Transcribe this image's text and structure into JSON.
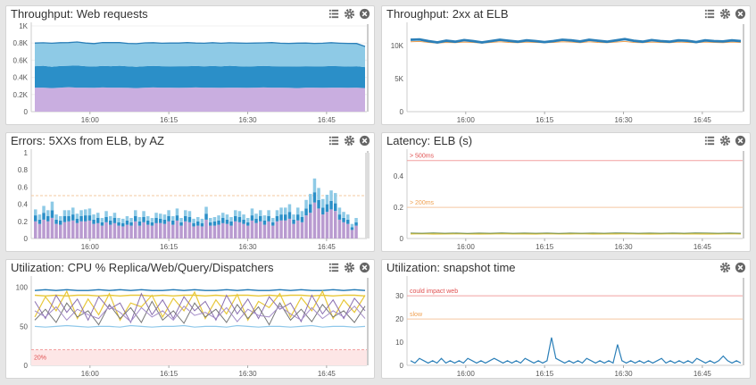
{
  "colors": {
    "lightblue": "#8ecae6",
    "blue": "#2b8fc8",
    "purple": "#b99bd0",
    "lightpurple": "#c9aee0",
    "yellow": "#e8c83a",
    "gray": "#777777",
    "red": "#e05050",
    "orange": "#f0a050",
    "darkblue": "#1f77b4",
    "skyline": "#8fc8ea",
    "marker": "#999999"
  },
  "panels": [
    {
      "title": "Throughput: Web requests",
      "icons": [
        "list-icon",
        "gear-icon",
        "close-icon"
      ]
    },
    {
      "title": "Throughput: 2xx at ELB",
      "icons": [
        "list-icon",
        "gear-icon",
        "close-icon"
      ]
    },
    {
      "title": "Errors: 5XXs from ELB, by AZ",
      "icons": [
        "list-icon",
        "gear-icon",
        "close-icon"
      ]
    },
    {
      "title": "Latency: ELB (s)",
      "icons": [
        "list-icon",
        "gear-icon",
        "close-icon"
      ]
    },
    {
      "title": "Utilization: CPU % Replica/Web/Query/Dispatchers",
      "icons": [
        "list-icon",
        "gear-icon",
        "close-icon"
      ]
    },
    {
      "title": "Utilization: snapshot time",
      "icons": [
        "gear-icon",
        "close-icon"
      ]
    }
  ],
  "chart_data": [
    {
      "type": "area",
      "title": "Throughput: Web requests",
      "x_ticks": [
        "16:00",
        "16:15",
        "16:30",
        "16:45"
      ],
      "y_ticks": [
        "0",
        "0.2K",
        "0.4K",
        "0.6K",
        "0.8K",
        "1K"
      ],
      "ylim": [
        0,
        1000
      ],
      "series": [
        {
          "values": [
            280,
            280,
            275,
            280,
            285,
            280,
            280,
            278,
            282,
            280,
            280,
            278,
            275,
            280,
            282,
            280,
            280,
            278,
            280,
            282,
            280,
            280,
            278,
            280,
            280,
            278,
            280,
            282,
            280,
            280,
            278,
            275,
            280,
            280,
            278,
            280,
            280,
            278,
            280,
            275
          ]
        },
        {
          "values": [
            250,
            255,
            248,
            252,
            250,
            258,
            250,
            248,
            252,
            250,
            255,
            250,
            248,
            250,
            252,
            250,
            248,
            252,
            250,
            250,
            248,
            252,
            250,
            255,
            250,
            248,
            250,
            252,
            250,
            248,
            250,
            252,
            250,
            248,
            250,
            252,
            250,
            248,
            250,
            245
          ]
        },
        {
          "values": [
            270,
            268,
            275,
            272,
            270,
            275,
            270,
            268,
            272,
            275,
            270,
            268,
            270,
            272,
            270,
            268,
            272,
            270,
            275,
            268,
            270,
            272,
            270,
            268,
            270,
            272,
            270,
            268,
            275,
            270,
            268,
            272,
            270,
            268,
            270,
            272,
            268,
            270,
            265,
            240
          ]
        }
      ]
    },
    {
      "type": "line",
      "title": "Throughput: 2xx at ELB",
      "x_ticks": [
        "16:00",
        "16:15",
        "16:30",
        "16:45"
      ],
      "y_ticks": [
        "0",
        "5K",
        "10K"
      ],
      "ylim": [
        0,
        13000
      ],
      "series": [
        {
          "values": [
            10900,
            10950,
            10700,
            10500,
            10750,
            10600,
            10850,
            10700,
            10500,
            10700,
            10900,
            10750,
            10600,
            10800,
            10700,
            10550,
            10700,
            10900,
            10800,
            10650,
            10900,
            10750,
            10600,
            10800,
            11000,
            10750,
            10600,
            10850,
            10700,
            10600,
            10800,
            10750,
            10550,
            10800,
            10700,
            10650,
            10800,
            10700
          ]
        },
        {
          "values": [
            10600,
            10650,
            10500,
            10400,
            10500,
            10450,
            10550,
            10500,
            10400,
            10500,
            10600,
            10500,
            10450,
            10550,
            10500,
            10450,
            10500,
            10600,
            10550,
            10450,
            10600,
            10500,
            10450,
            10550,
            10650,
            10500,
            10450,
            10550,
            10500,
            10450,
            10550,
            10500,
            10450,
            10550,
            10500,
            10450,
            10550,
            10500
          ]
        }
      ]
    },
    {
      "type": "bar",
      "title": "Errors: 5XXs from ELB, by AZ",
      "x_ticks": [
        "16:00",
        "16:15",
        "16:30",
        "16:45"
      ],
      "y_ticks": [
        "0",
        "0.2",
        "0.4",
        "0.6",
        "0.8",
        "1"
      ],
      "ylim": [
        0,
        1
      ],
      "series": [
        {
          "values": [
            0.2,
            0.17,
            0.22,
            0.2,
            0.24,
            0.17,
            0.16,
            0.19,
            0.2,
            0.21,
            0.18,
            0.2,
            0.2,
            0.21,
            0.17,
            0.18,
            0.15,
            0.19,
            0.16,
            0.18,
            0.15,
            0.14,
            0.16,
            0.15,
            0.2,
            0.15,
            0.19,
            0.16,
            0.15,
            0.18,
            0.18,
            0.17,
            0.2,
            0.16,
            0.21,
            0.15,
            0.2,
            0.19,
            0.14,
            0.15,
            0.14,
            0.22,
            0.15,
            0.15,
            0.16,
            0.18,
            0.17,
            0.15,
            0.2,
            0.19,
            0.17,
            0.15,
            0.21,
            0.18,
            0.2,
            0.16,
            0.2,
            0.15,
            0.2,
            0.21,
            0.21,
            0.23,
            0.17,
            0.21,
            0.19,
            0.27,
            0.3,
            0.42,
            0.35,
            0.28,
            0.31,
            0.34,
            0.32,
            0.22,
            0.19,
            0.17,
            0.1,
            0.15
          ]
        },
        {
          "values": [
            0.07,
            0.05,
            0.08,
            0.06,
            0.09,
            0.05,
            0.05,
            0.07,
            0.06,
            0.07,
            0.05,
            0.06,
            0.07,
            0.06,
            0.05,
            0.06,
            0.04,
            0.06,
            0.05,
            0.06,
            0.04,
            0.04,
            0.05,
            0.04,
            0.06,
            0.05,
            0.06,
            0.05,
            0.04,
            0.06,
            0.05,
            0.05,
            0.06,
            0.05,
            0.06,
            0.04,
            0.06,
            0.06,
            0.04,
            0.05,
            0.04,
            0.07,
            0.04,
            0.05,
            0.05,
            0.06,
            0.05,
            0.05,
            0.06,
            0.06,
            0.05,
            0.04,
            0.06,
            0.05,
            0.06,
            0.05,
            0.06,
            0.04,
            0.06,
            0.07,
            0.07,
            0.08,
            0.05,
            0.07,
            0.06,
            0.08,
            0.1,
            0.12,
            0.1,
            0.08,
            0.09,
            0.1,
            0.09,
            0.06,
            0.05,
            0.05,
            0.03,
            0.04
          ]
        },
        {
          "values": [
            0.07,
            0.06,
            0.08,
            0.07,
            0.1,
            0.06,
            0.05,
            0.07,
            0.07,
            0.08,
            0.06,
            0.07,
            0.07,
            0.08,
            0.06,
            0.06,
            0.05,
            0.07,
            0.05,
            0.06,
            0.05,
            0.05,
            0.05,
            0.05,
            0.07,
            0.05,
            0.07,
            0.05,
            0.05,
            0.06,
            0.06,
            0.06,
            0.07,
            0.05,
            0.08,
            0.05,
            0.07,
            0.07,
            0.05,
            0.05,
            0.05,
            0.08,
            0.05,
            0.05,
            0.06,
            0.06,
            0.06,
            0.05,
            0.07,
            0.07,
            0.06,
            0.05,
            0.08,
            0.06,
            0.07,
            0.06,
            0.07,
            0.05,
            0.07,
            0.08,
            0.08,
            0.09,
            0.06,
            0.08,
            0.07,
            0.1,
            0.12,
            0.16,
            0.14,
            0.1,
            0.11,
            0.12,
            0.12,
            0.08,
            0.07,
            0.06,
            0.04,
            0.05
          ]
        }
      ]
    },
    {
      "type": "line",
      "title": "Latency: ELB (s)",
      "x_ticks": [
        "16:00",
        "16:15",
        "16:30",
        "16:45"
      ],
      "y_ticks": [
        "0",
        "0.2",
        "0.4"
      ],
      "ylim": [
        0,
        0.55
      ],
      "annotations": [
        "> 500ms",
        "> 200ms"
      ],
      "series": [
        {
          "values": [
            0.035,
            0.034,
            0.036,
            0.034,
            0.035,
            0.033,
            0.035,
            0.034,
            0.036,
            0.034,
            0.035,
            0.034,
            0.035,
            0.033,
            0.035,
            0.034,
            0.035,
            0.034,
            0.036,
            0.035,
            0.034,
            0.035,
            0.034,
            0.035,
            0.034,
            0.036,
            0.035,
            0.034,
            0.035,
            0.034
          ]
        },
        {
          "values": [
            0.03,
            0.031,
            0.029,
            0.03,
            0.031,
            0.03,
            0.029,
            0.03,
            0.031,
            0.03,
            0.03,
            0.029,
            0.031,
            0.03,
            0.03,
            0.031,
            0.029,
            0.03,
            0.03,
            0.031,
            0.03,
            0.029,
            0.03,
            0.031,
            0.03,
            0.03,
            0.029,
            0.03,
            0.031,
            0.03
          ]
        }
      ]
    },
    {
      "type": "line",
      "title": "Utilization: CPU % Replica/Web/Query/Dispatchers",
      "x_ticks": [
        "16:00",
        "16:15",
        "16:30",
        "16:45"
      ],
      "y_ticks": [
        "0",
        "50",
        "100"
      ],
      "ylim": [
        0,
        110
      ],
      "annotations": [
        "20%"
      ],
      "series": [
        {
          "values": [
            96,
            97,
            96,
            97,
            96,
            96,
            97,
            96,
            97,
            96,
            97,
            96,
            96,
            97,
            96,
            97,
            96,
            96,
            97,
            96,
            97,
            96,
            96,
            97,
            96,
            97,
            96,
            96,
            97,
            96,
            97,
            96
          ]
        },
        {
          "values": [
            90,
            89,
            90,
            89,
            90,
            90,
            89,
            90,
            89,
            90,
            90,
            89,
            90,
            89,
            90,
            90,
            89,
            90,
            89,
            90,
            90,
            89,
            90,
            89,
            90,
            90,
            89,
            90,
            89,
            90,
            90,
            89
          ]
        },
        {
          "values": [
            62,
            88,
            70,
            95,
            60,
            85,
            65,
            92,
            58,
            80,
            75,
            90,
            62,
            86,
            70,
            94,
            60,
            84,
            66,
            91,
            58,
            82,
            74,
            92,
            62,
            87,
            70,
            95,
            60,
            84,
            68,
            90
          ]
        },
        {
          "values": [
            82,
            60,
            90,
            68,
            85,
            58,
            88,
            72,
            80,
            55,
            92,
            65,
            84,
            60,
            88,
            70,
            82,
            58,
            90,
            66,
            85,
            60,
            88,
            72,
            80,
            56,
            90,
            66,
            84,
            60,
            86,
            70
          ]
        },
        {
          "values": [
            58,
            72,
            55,
            80,
            62,
            70,
            52,
            78,
            60,
            74,
            55,
            82,
            58,
            70,
            54,
            80,
            62,
            72,
            55,
            78,
            60,
            75,
            52,
            80,
            58,
            72,
            56,
            78,
            62,
            70,
            55,
            76
          ]
        },
        {
          "values": [
            70,
            62,
            75,
            58,
            72,
            65,
            60,
            76,
            68,
            56,
            74,
            62,
            70,
            58,
            76,
            64,
            68,
            60,
            74,
            56,
            72,
            64,
            62,
            76,
            66,
            58,
            74,
            60,
            70,
            62,
            76,
            60
          ]
        },
        {
          "values": [
            50,
            49,
            50,
            51,
            50,
            49,
            50,
            50,
            49,
            51,
            50,
            49,
            50,
            50,
            51,
            49,
            50,
            50,
            49,
            51,
            50,
            49,
            50,
            50,
            49,
            50,
            51,
            49,
            50,
            50,
            49,
            50
          ]
        }
      ]
    },
    {
      "type": "line",
      "title": "Utilization: snapshot time",
      "x_ticks": [
        "16:00",
        "16:15",
        "16:30",
        "16:45"
      ],
      "y_ticks": [
        "0",
        "10",
        "20",
        "30"
      ],
      "ylim": [
        0,
        37
      ],
      "annotations": [
        "could impact web",
        "slow"
      ],
      "series": [
        {
          "values": [
            2,
            1,
            3,
            2,
            1,
            2,
            1,
            3,
            1,
            2,
            1,
            2,
            1,
            3,
            2,
            1,
            2,
            1,
            2,
            3,
            2,
            1,
            2,
            1,
            2,
            1,
            3,
            2,
            1,
            2,
            1,
            2,
            12,
            3,
            2,
            1,
            2,
            1,
            2,
            1,
            3,
            2,
            1,
            2,
            1,
            2,
            1,
            9,
            2,
            1,
            2,
            1,
            2,
            1,
            2,
            1,
            2,
            3,
            1,
            2,
            1,
            2,
            1,
            2,
            1,
            3,
            2,
            1,
            2,
            1,
            2,
            4,
            2,
            1,
            2,
            1
          ]
        }
      ]
    }
  ]
}
